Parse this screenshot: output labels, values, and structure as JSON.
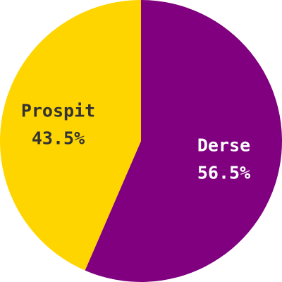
{
  "chart_data": {
    "type": "pie",
    "title": "",
    "start": "top",
    "direction": "clockwise",
    "slices": [
      {
        "name": "Derse",
        "value": 56.5,
        "value_label": "56.5%",
        "color": "#800080",
        "label_color": "#ffffff",
        "label_outline": "#800080"
      },
      {
        "name": "Prospit",
        "value": 43.5,
        "value_label": "43.5%",
        "color": "#FFD500",
        "label_color": "#333333",
        "label_outline": "#FFD500"
      }
    ]
  }
}
